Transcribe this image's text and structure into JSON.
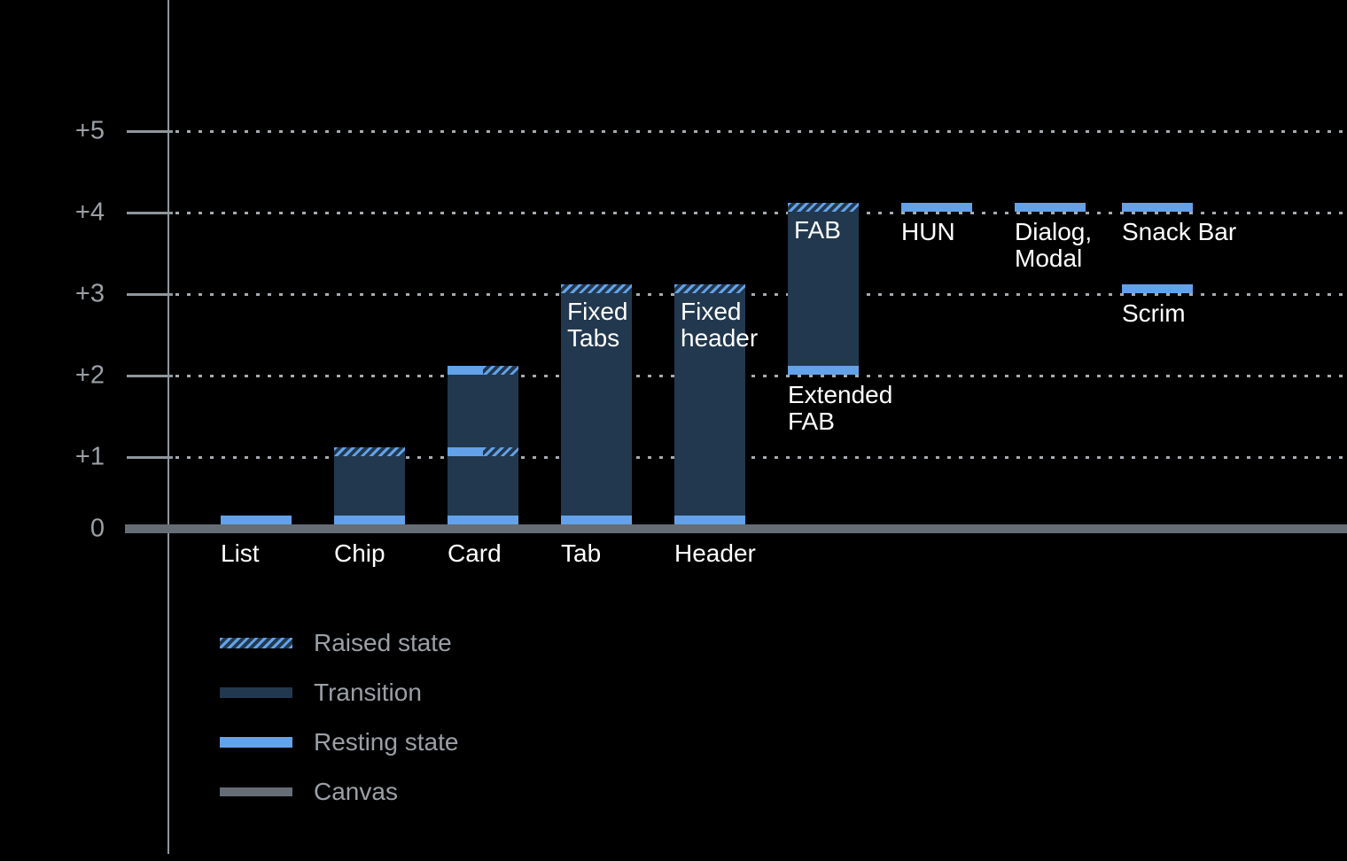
{
  "colors": {
    "background": "#000000",
    "resting_state_blue": "#63A2E8",
    "transition_navy": "#22384F",
    "canvas_gray": "#666D75",
    "axis_text_gray": "#9AA0A6",
    "bar_label_white": "#FFFFFF",
    "gridline_gray": "#A6ABB1",
    "axis_line_gray": "#8F969D"
  },
  "chart_data": {
    "type": "bar",
    "title": "",
    "y_axis": {
      "tick_labels": [
        "+5",
        "+4",
        "+3",
        "+2",
        "+1",
        "0"
      ],
      "tick_values": [
        5,
        4,
        3,
        2,
        1,
        0
      ],
      "ylim": [
        0,
        5.5
      ],
      "grid": "dotted horizontal lines at +1 through +5"
    },
    "x_axis": {
      "labels": [
        "List",
        "Chip",
        "Card",
        "Tab",
        "Header"
      ]
    },
    "bars": [
      {
        "name": "List",
        "column": 0,
        "base": 0,
        "top": 0.1,
        "has_body": false,
        "axis_label": "List",
        "bands": [
          {
            "value": 0,
            "style": "resting"
          }
        ]
      },
      {
        "name": "Chip",
        "column": 1,
        "base": 0,
        "top": 1.1,
        "has_body": true,
        "axis_label": "Chip",
        "bands": [
          {
            "value": 0,
            "style": "resting"
          },
          {
            "value": 1,
            "style": "raised"
          }
        ]
      },
      {
        "name": "Card",
        "column": 2,
        "base": 0,
        "top": 2.1,
        "has_body": true,
        "axis_label": "Card",
        "bands": [
          {
            "value": 0,
            "style": "resting"
          },
          {
            "value": 1,
            "style": "split"
          },
          {
            "value": 2,
            "style": "split"
          }
        ]
      },
      {
        "name": "Fixed Tabs",
        "column": 3,
        "base": 0,
        "top": 3.1,
        "has_body": true,
        "axis_label": "Tab",
        "inner_label": "Fixed\nTabs",
        "bands": [
          {
            "value": 0,
            "style": "resting"
          },
          {
            "value": 3,
            "style": "raised"
          }
        ]
      },
      {
        "name": "Fixed header",
        "column": 4,
        "base": 0,
        "top": 3.1,
        "has_body": true,
        "axis_label": "Header",
        "inner_label": "Fixed\nheader",
        "bands": [
          {
            "value": 0,
            "style": "resting"
          },
          {
            "value": 3,
            "style": "raised"
          }
        ]
      },
      {
        "name": "FAB",
        "column": 5,
        "base": 2,
        "top": 4.1,
        "has_body": true,
        "inner_label": "FAB",
        "below_label": "Extended\nFAB",
        "below_value": 2,
        "bands": [
          {
            "value": 2,
            "style": "resting"
          },
          {
            "value": 4,
            "style": "raised"
          }
        ]
      },
      {
        "name": "HUN",
        "column": 6,
        "base": 4,
        "top": 4.1,
        "has_body": false,
        "below_label": "HUN",
        "below_value": 4,
        "bands": [
          {
            "value": 4,
            "style": "resting"
          }
        ]
      },
      {
        "name": "Dialog, Modal",
        "column": 7,
        "base": 4,
        "top": 4.1,
        "has_body": false,
        "below_label": "Dialog,\nModal",
        "below_value": 4,
        "bands": [
          {
            "value": 4,
            "style": "resting"
          }
        ]
      },
      {
        "name": "Snack Bar",
        "column": 8,
        "base": 4,
        "top": 4.1,
        "has_body": false,
        "below_label": "Snack Bar",
        "below_value": 4,
        "bands": [
          {
            "value": 4,
            "style": "resting"
          }
        ]
      },
      {
        "name": "Scrim",
        "column": 8,
        "base": 3,
        "top": 3.1,
        "has_body": false,
        "below_label": "Scrim",
        "below_value": 3,
        "bands": [
          {
            "value": 3,
            "style": "resting"
          }
        ]
      }
    ],
    "legend": {
      "position": "bottom-left",
      "items": [
        {
          "style": "raised",
          "label": "Raised state"
        },
        {
          "style": "transition",
          "label": "Transition"
        },
        {
          "style": "resting",
          "label": "Resting state"
        },
        {
          "style": "canvas",
          "label": "Canvas"
        }
      ]
    }
  }
}
